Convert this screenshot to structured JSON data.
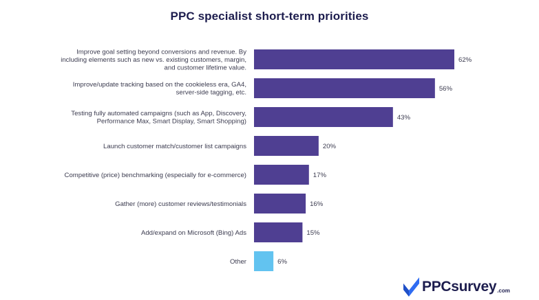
{
  "chart_data": {
    "type": "bar",
    "orientation": "horizontal",
    "title": "PPC specialist short-term priorities",
    "categories": [
      [
        "Improve goal setting beyond conversions and revenue. By",
        "including elements such as new vs. existing customers, margin,",
        "and customer lifetime value."
      ],
      [
        "Improve/update tracking based on the cookieless era, GA4,",
        "server-side tagging, etc."
      ],
      [
        "Testing fully automated campaigns (such as App, Discovery,",
        "Performance Max, Smart Display, Smart Shopping)"
      ],
      [
        "Launch customer match/customer list campaigns"
      ],
      [
        "Competitive (price) benchmarking (especially for e-commerce)"
      ],
      [
        "Gather (more) customer reviews/testimonials"
      ],
      [
        "Add/expand on Microsoft (Bing) Ads"
      ],
      [
        "Other"
      ]
    ],
    "values": [
      62,
      56,
      43,
      20,
      17,
      16,
      15,
      6
    ],
    "value_labels": [
      "62%",
      "56%",
      "43%",
      "20%",
      "17%",
      "16%",
      "15%",
      "6%"
    ],
    "unit": "%",
    "xlim": [
      0,
      62
    ],
    "grid": false,
    "colors": {
      "bar": "#4f3f92",
      "bar_other": "#62c3f0"
    }
  },
  "logo": {
    "text": "PPCsurvey",
    "suffix": ".com",
    "icon": "checkmark-logo-icon",
    "colors": {
      "primary": "#2f6cf2",
      "dark": "#1d1d4e"
    }
  }
}
